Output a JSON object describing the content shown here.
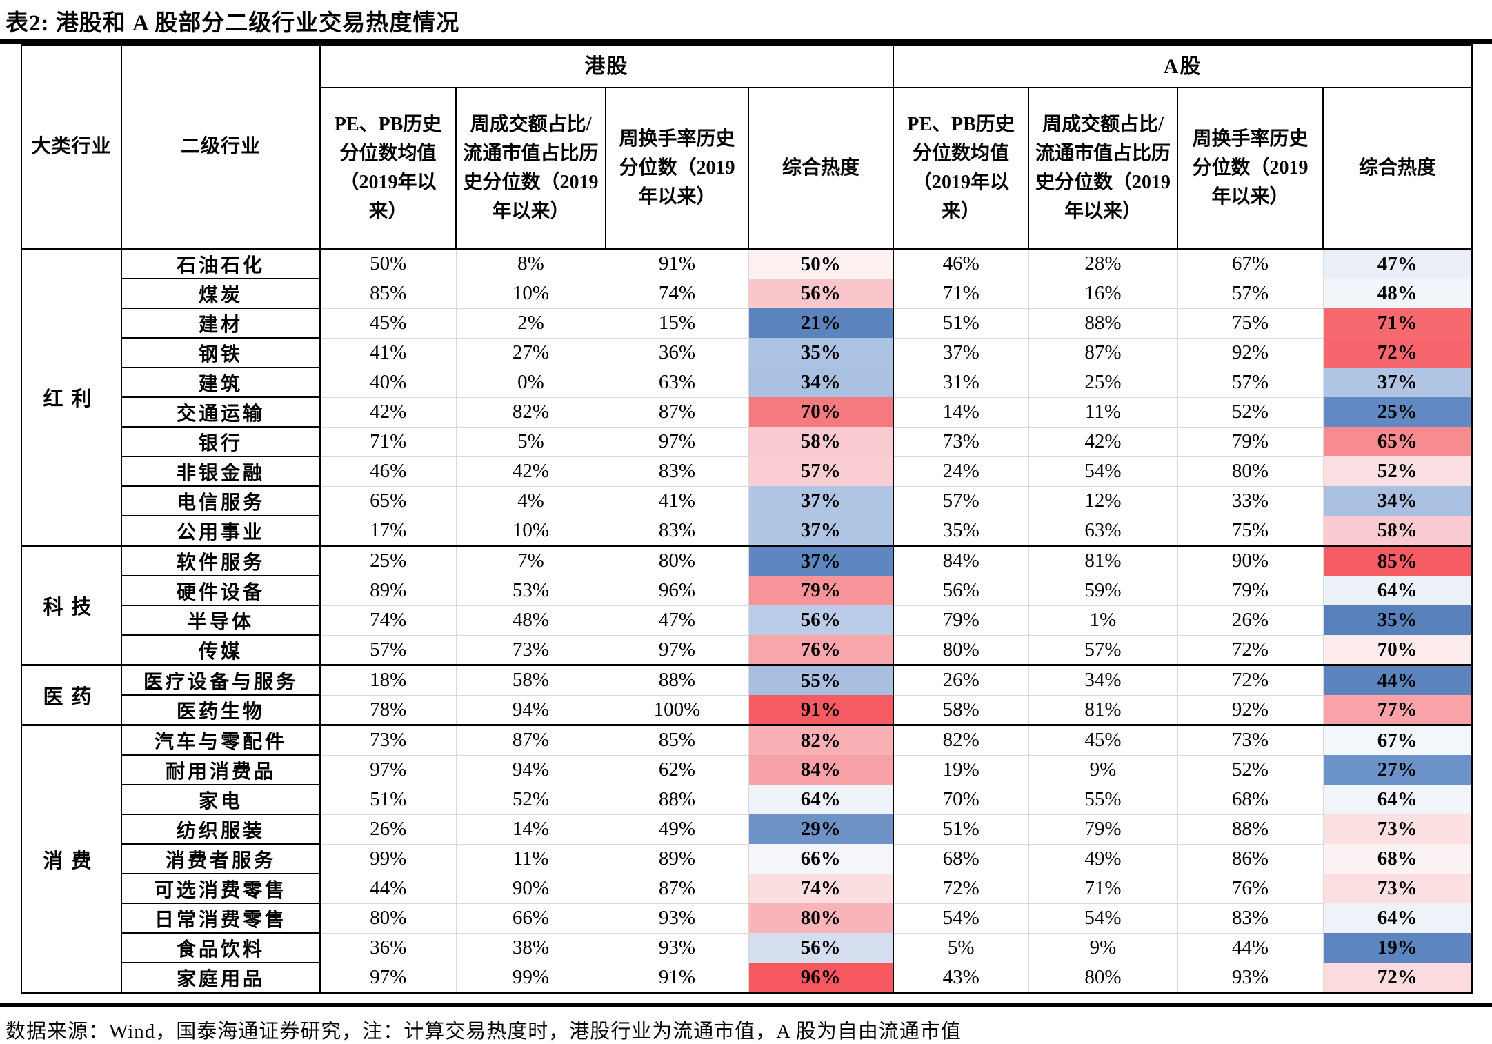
{
  "title": "表2: 港股和 A 股部分二级行业交易热度情况",
  "footer": "数据来源：Wind，国泰海通证券研究，注：计算交易热度时，港股行业为流通市值，A 股为自由流通市值",
  "header": {
    "col_major": "大类行业",
    "col_secondary": "二级行业",
    "group_hk": "港股",
    "group_a": "A股",
    "metrics": [
      "PE、PB历史分位数均值（2019年以来）",
      "周成交额占比/流通市值占比历史分位数（2019年以来）",
      "周换手率历史分位数（2019年以来）",
      "综合热度"
    ]
  },
  "legend_colors": {
    "high_heat": "#f5595f",
    "mid_heat": "#fdf3f4",
    "low_heat": "#5b84bf"
  },
  "groups": [
    {
      "name": "红利",
      "rows": [
        {
          "industry": "石油石化",
          "hk_metrics": [
            "50%",
            "8%",
            "91%"
          ],
          "hk_composite": "50%",
          "hk_color": "#fcf0f1",
          "a_metrics": [
            "46%",
            "28%",
            "67%"
          ],
          "a_composite": "47%",
          "a_color": "#e9eef7"
        },
        {
          "industry": "煤炭",
          "hk_metrics": [
            "85%",
            "10%",
            "74%"
          ],
          "hk_composite": "56%",
          "hk_color": "#f9c6cb",
          "a_metrics": [
            "71%",
            "16%",
            "57%"
          ],
          "a_composite": "48%",
          "a_color": "#f2f5fa"
        },
        {
          "industry": "建材",
          "hk_metrics": [
            "45%",
            "2%",
            "15%"
          ],
          "hk_composite": "21%",
          "hk_color": "#5b84bf",
          "a_metrics": [
            "51%",
            "88%",
            "75%"
          ],
          "a_composite": "71%",
          "a_color": "#f6696f"
        },
        {
          "industry": "钢铁",
          "hk_metrics": [
            "41%",
            "27%",
            "36%"
          ],
          "hk_composite": "35%",
          "hk_color": "#abc2e2",
          "a_metrics": [
            "37%",
            "87%",
            "92%"
          ],
          "a_composite": "72%",
          "a_color": "#f6666c"
        },
        {
          "industry": "建筑",
          "hk_metrics": [
            "40%",
            "0%",
            "63%"
          ],
          "hk_composite": "34%",
          "hk_color": "#a9c0e1",
          "a_metrics": [
            "31%",
            "25%",
            "57%"
          ],
          "a_composite": "37%",
          "a_color": "#b0c5e4"
        },
        {
          "industry": "交通运输",
          "hk_metrics": [
            "42%",
            "82%",
            "87%"
          ],
          "hk_composite": "70%",
          "hk_color": "#f57a80",
          "a_metrics": [
            "14%",
            "11%",
            "52%"
          ],
          "a_composite": "25%",
          "a_color": "#6289c3"
        },
        {
          "industry": "银行",
          "hk_metrics": [
            "71%",
            "5%",
            "97%"
          ],
          "hk_composite": "58%",
          "hk_color": "#f9cbd0",
          "a_metrics": [
            "73%",
            "42%",
            "79%"
          ],
          "a_composite": "65%",
          "a_color": "#f78b90"
        },
        {
          "industry": "非银金融",
          "hk_metrics": [
            "46%",
            "42%",
            "83%"
          ],
          "hk_composite": "57%",
          "hk_color": "#f9cdd2",
          "a_metrics": [
            "24%",
            "54%",
            "80%"
          ],
          "a_composite": "52%",
          "a_color": "#fbdfe2"
        },
        {
          "industry": "电信服务",
          "hk_metrics": [
            "65%",
            "4%",
            "41%"
          ],
          "hk_composite": "37%",
          "hk_color": "#b0c5e4",
          "a_metrics": [
            "57%",
            "12%",
            "33%"
          ],
          "a_composite": "34%",
          "a_color": "#a9c0e1"
        },
        {
          "industry": "公用事业",
          "hk_metrics": [
            "17%",
            "10%",
            "83%"
          ],
          "hk_composite": "37%",
          "hk_color": "#b0c5e4",
          "a_metrics": [
            "35%",
            "63%",
            "75%"
          ],
          "a_composite": "58%",
          "a_color": "#f9cbd0"
        }
      ]
    },
    {
      "name": "科技",
      "rows": [
        {
          "industry": "软件服务",
          "hk_metrics": [
            "25%",
            "7%",
            "80%"
          ],
          "hk_composite": "37%",
          "hk_color": "#5e86c0",
          "a_metrics": [
            "84%",
            "81%",
            "90%"
          ],
          "a_composite": "85%",
          "a_color": "#f55c63"
        },
        {
          "industry": "硬件设备",
          "hk_metrics": [
            "89%",
            "53%",
            "96%"
          ],
          "hk_composite": "79%",
          "hk_color": "#f79499",
          "a_metrics": [
            "56%",
            "59%",
            "79%"
          ],
          "a_composite": "64%",
          "a_color": "#edf1f8"
        },
        {
          "industry": "半导体",
          "hk_metrics": [
            "74%",
            "48%",
            "47%"
          ],
          "hk_composite": "56%",
          "hk_color": "#bacce7",
          "a_metrics": [
            "79%",
            "1%",
            "26%"
          ],
          "a_composite": "35%",
          "a_color": "#5881bc"
        },
        {
          "industry": "传媒",
          "hk_metrics": [
            "57%",
            "73%",
            "97%"
          ],
          "hk_composite": "76%",
          "hk_color": "#f8a6ab",
          "a_metrics": [
            "80%",
            "57%",
            "72%"
          ],
          "a_composite": "70%",
          "a_color": "#fcebec"
        }
      ]
    },
    {
      "name": "医药",
      "rows": [
        {
          "industry": "医疗设备与服务",
          "hk_metrics": [
            "18%",
            "58%",
            "88%"
          ],
          "hk_composite": "55%",
          "hk_color": "#a8bfdf",
          "a_metrics": [
            "26%",
            "34%",
            "72%"
          ],
          "a_composite": "44%",
          "a_color": "#5b84bd"
        },
        {
          "industry": "医药生物",
          "hk_metrics": [
            "78%",
            "94%",
            "100%"
          ],
          "hk_composite": "91%",
          "hk_color": "#f55b62",
          "a_metrics": [
            "58%",
            "81%",
            "92%"
          ],
          "a_composite": "77%",
          "a_color": "#f9a3a8"
        }
      ]
    },
    {
      "name": "消费",
      "rows": [
        {
          "industry": "汽车与零配件",
          "hk_metrics": [
            "73%",
            "87%",
            "85%"
          ],
          "hk_composite": "82%",
          "hk_color": "#f8b0b5",
          "a_metrics": [
            "82%",
            "45%",
            "73%"
          ],
          "a_composite": "67%",
          "a_color": "#f3f6fa"
        },
        {
          "industry": "耐用消费品",
          "hk_metrics": [
            "97%",
            "94%",
            "62%"
          ],
          "hk_composite": "84%",
          "hk_color": "#f8a2a7",
          "a_metrics": [
            "19%",
            "9%",
            "52%"
          ],
          "a_composite": "27%",
          "a_color": "#6b93c9"
        },
        {
          "industry": "家电",
          "hk_metrics": [
            "51%",
            "52%",
            "88%"
          ],
          "hk_composite": "64%",
          "hk_color": "#eef2f9",
          "a_metrics": [
            "70%",
            "55%",
            "68%"
          ],
          "a_composite": "64%",
          "a_color": "#f1f4f9"
        },
        {
          "industry": "纺织服装",
          "hk_metrics": [
            "26%",
            "14%",
            "49%"
          ],
          "hk_composite": "29%",
          "hk_color": "#6e92c6",
          "a_metrics": [
            "51%",
            "79%",
            "88%"
          ],
          "a_composite": "73%",
          "a_color": "#fce0e2"
        },
        {
          "industry": "消费者服务",
          "hk_metrics": [
            "99%",
            "11%",
            "89%"
          ],
          "hk_composite": "66%",
          "hk_color": "#f4f6fb",
          "a_metrics": [
            "68%",
            "49%",
            "86%"
          ],
          "a_composite": "68%",
          "a_color": "#fbf2f3"
        },
        {
          "industry": "可选消费零售",
          "hk_metrics": [
            "44%",
            "90%",
            "87%"
          ],
          "hk_composite": "74%",
          "hk_color": "#fbdee0",
          "a_metrics": [
            "72%",
            "71%",
            "76%"
          ],
          "a_composite": "73%",
          "a_color": "#fcdfe1"
        },
        {
          "industry": "日常消费零售",
          "hk_metrics": [
            "80%",
            "66%",
            "93%"
          ],
          "hk_composite": "80%",
          "hk_color": "#f8b4b9",
          "a_metrics": [
            "54%",
            "54%",
            "83%"
          ],
          "a_composite": "64%",
          "a_color": "#eff3f9"
        },
        {
          "industry": "食品饮料",
          "hk_metrics": [
            "36%",
            "38%",
            "93%"
          ],
          "hk_composite": "56%",
          "hk_color": "#d4deef",
          "a_metrics": [
            "5%",
            "9%",
            "44%"
          ],
          "a_composite": "19%",
          "a_color": "#5d86c0"
        },
        {
          "industry": "家庭用品",
          "hk_metrics": [
            "97%",
            "99%",
            "91%"
          ],
          "hk_composite": "96%",
          "hk_color": "#f5595f",
          "a_metrics": [
            "43%",
            "80%",
            "93%"
          ],
          "a_composite": "72%",
          "a_color": "#fbdbde"
        }
      ]
    }
  ]
}
